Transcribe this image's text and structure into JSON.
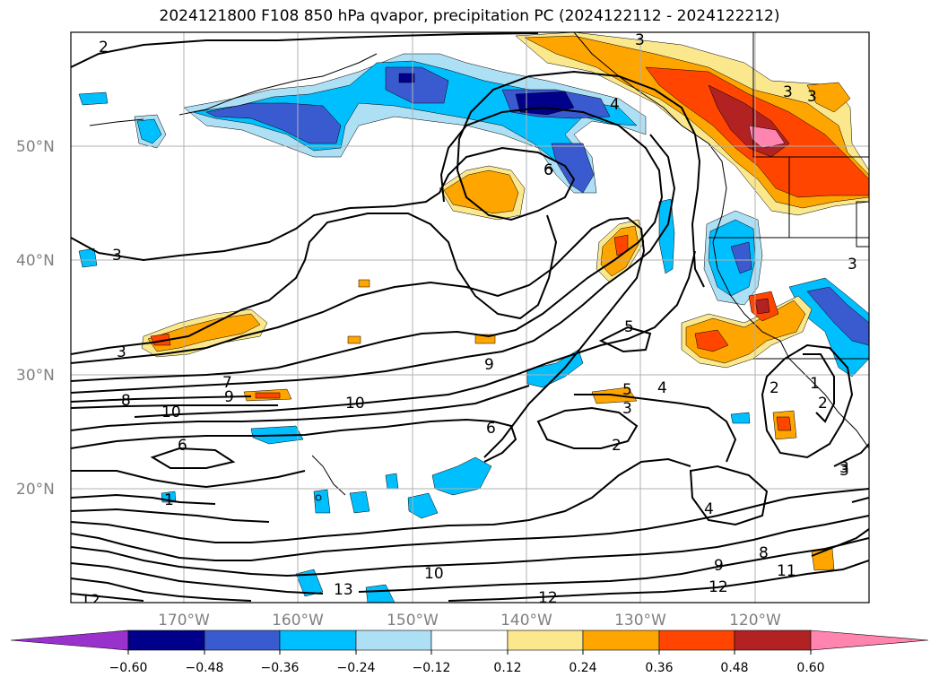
{
  "title": "2024121800 F108 850 hPa qvapor, precipitation PC (2024122112 - 2024122212)",
  "lat_labels": [
    "50°N",
    "40°N",
    "30°N",
    "20°N"
  ],
  "lon_labels": [
    "170°W",
    "160°W",
    "150°W",
    "140°W",
    "130°W",
    "120°W"
  ],
  "colorbar": {
    "ticks": [
      "−0.60",
      "−0.48",
      "−0.36",
      "−0.24",
      "−0.12",
      "0.12",
      "0.24",
      "0.36",
      "0.48",
      "0.60"
    ],
    "colors": {
      "lt_m060": "#9932cc",
      "m060_m048": "#00008b",
      "m048_m036": "#3a5bd0",
      "m036_m024": "#00bfff",
      "m024_m012": "#aee0f5",
      "m012_012": "#ffffff",
      "p012_024": "#fbe88c",
      "p024_036": "#ffa500",
      "p036_048": "#ff4500",
      "p048_060": "#b22222",
      "gt_060": "#ff85b0"
    }
  },
  "contour_labels": [
    "2",
    "3",
    "3",
    "3",
    "3",
    "3",
    "3",
    "4",
    "6",
    "9",
    "5",
    "5",
    "4",
    "3",
    "2",
    "7",
    "8",
    "9",
    "10",
    "10",
    "6",
    "6",
    "2",
    "1",
    "2",
    "1",
    "3",
    "4",
    "8",
    "9",
    "11",
    "12",
    "12",
    "12",
    "10",
    "13",
    "12",
    "3"
  ]
}
